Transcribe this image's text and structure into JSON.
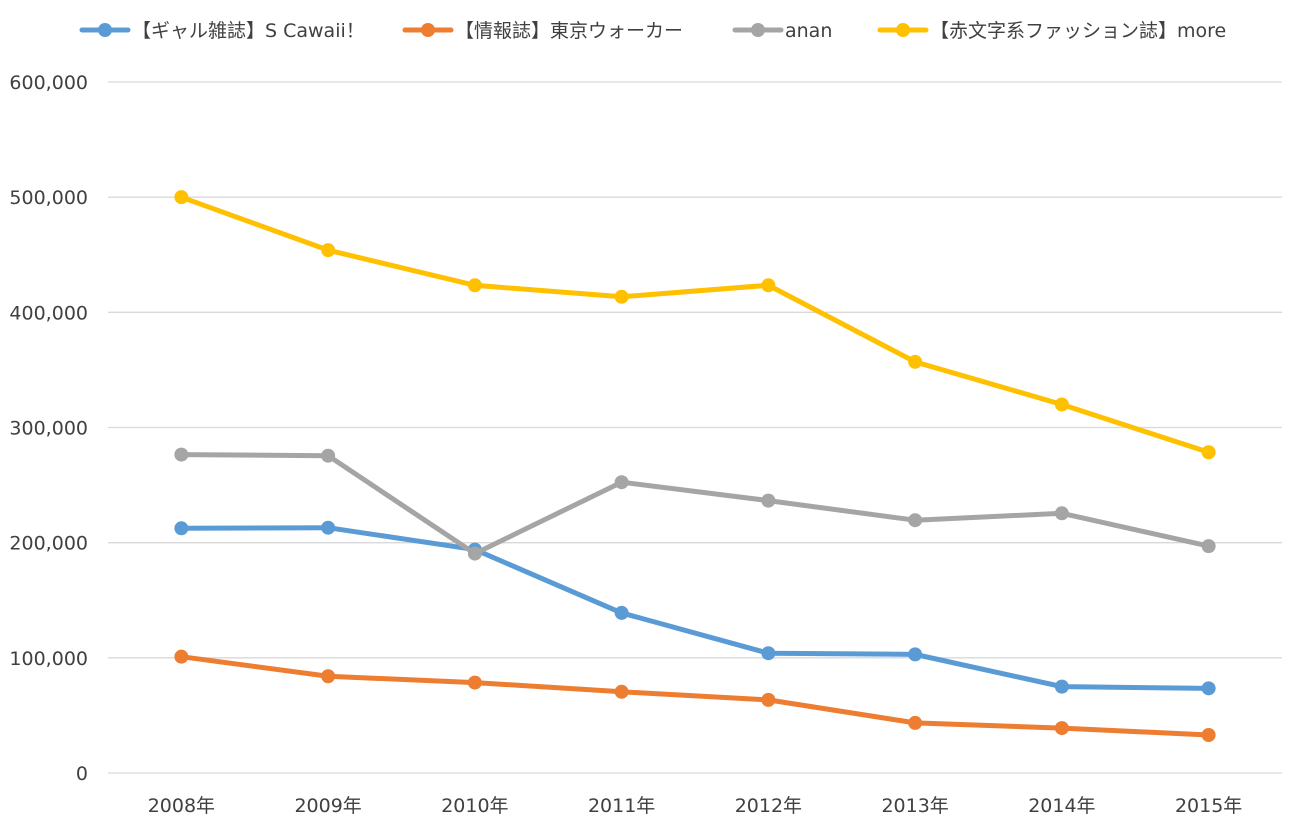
{
  "chart_data": {
    "type": "line",
    "categories": [
      "2008年",
      "2009年",
      "2010年",
      "2011年",
      "2012年",
      "2013年",
      "2014年",
      "2015年"
    ],
    "series": [
      {
        "name": "【ギャル雑誌】S Cawaii！",
        "color": "#5b9bd5",
        "values": [
          212500,
          213000,
          194000,
          139000,
          104000,
          103000,
          75000,
          73500
        ]
      },
      {
        "name": "【情報誌】東京ウォーカー",
        "color": "#ed7d31",
        "values": [
          101000,
          84000,
          78500,
          70500,
          63500,
          43500,
          39000,
          33000
        ]
      },
      {
        "name": "anan",
        "color": "#a5a5a5",
        "values": [
          276500,
          275500,
          190500,
          252500,
          236500,
          219500,
          225500,
          197000
        ]
      },
      {
        "name": "【赤文字系ファッション誌】more",
        "color": "#ffc000",
        "values": [
          500000,
          454000,
          423500,
          413500,
          423500,
          357000,
          320000,
          278500
        ]
      }
    ],
    "yticks": [
      "0",
      "100,000",
      "200,000",
      "300,000",
      "400,000",
      "500,000",
      "600,000"
    ],
    "ylim": [
      0,
      600000
    ],
    "grid": true,
    "legend": "top"
  }
}
